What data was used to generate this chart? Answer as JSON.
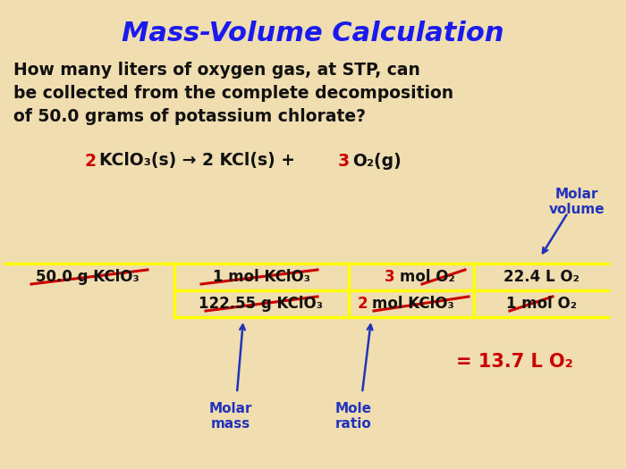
{
  "title": "Mass-Volume Calculation",
  "title_color": "#1a1aee",
  "background_color": "#f0ddb0",
  "question_line1": "How many liters of oxygen gas, at STP, can",
  "question_line2": "be collected from the complete decomposition",
  "question_line3": "of 50.0 grams of potassium chlorate?",
  "red_color": "#cc0000",
  "blue_color": "#2233bb",
  "black_color": "#111111",
  "yellow_color": "#ffff00",
  "row1_col0": "50.0 g KClO₃",
  "row1_col1": "1 mol KClO₃",
  "row1_col2_red": "3",
  "row1_col2_black": " mol O₂",
  "row1_col3": "22.4 L O₂",
  "row2_col1": "122.55 g KClO₃",
  "row2_col2_red": "2",
  "row2_col2_black": " mol KClO₃",
  "row2_col3": "1 mol O₂",
  "result": "= 13.7 L O₂",
  "label_molar_volume": "Molar\nvolume",
  "label_molar_mass": "Molar\nmass",
  "label_mole_ratio": "Mole\nratio"
}
